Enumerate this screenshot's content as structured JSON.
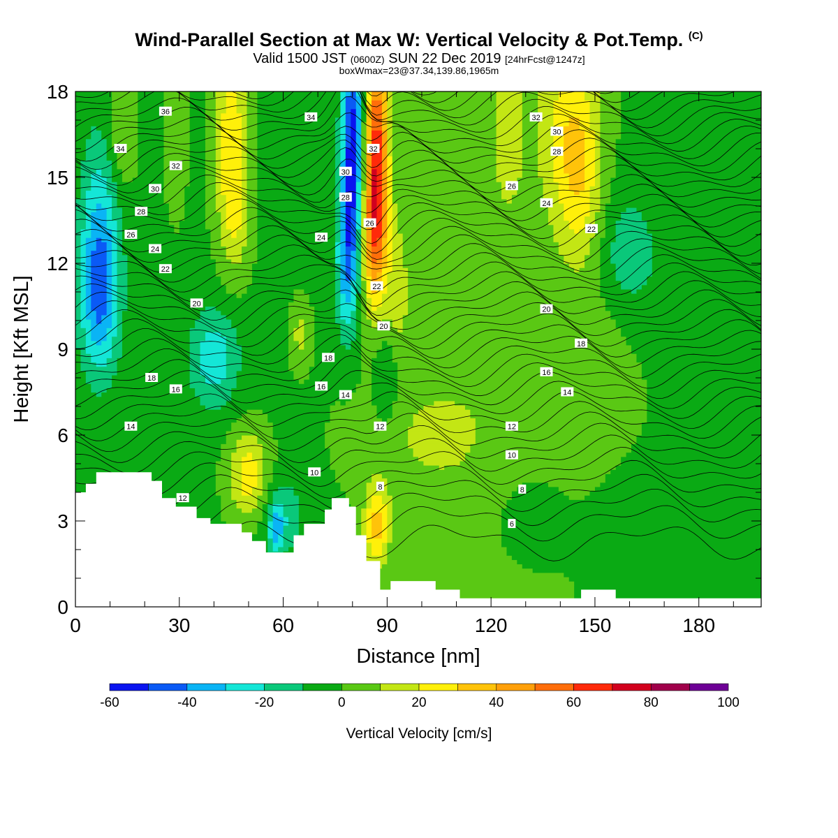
{
  "title": {
    "main": "Wind-Parallel Section at Max W: Vertical Velocity & Pot.Temp.",
    "copyright": "(C)",
    "valid_prefix": "Valid 1500 JST",
    "valid_utc": "(0600Z)",
    "valid_date": "SUN 22 Dec 2019",
    "forecast": "[24hrFcst@1247z]",
    "boxwmax": "boxWmax=23@37.34,139.86,1965m"
  },
  "chart_data": {
    "type": "heatmap",
    "xlabel": "Distance [nm]",
    "ylabel": "Height [Kft MSL]",
    "xlim": [
      0,
      198
    ],
    "ylim": [
      0,
      18
    ],
    "xticks": [
      0,
      30,
      60,
      90,
      120,
      150,
      180
    ],
    "yticks": [
      0,
      3,
      6,
      9,
      12,
      15,
      18
    ],
    "colorbar": {
      "title": "Vertical Velocity [cm/s]",
      "levels": [
        -60,
        -50,
        -40,
        -30,
        -20,
        -10,
        0,
        10,
        20,
        30,
        40,
        50,
        60,
        70,
        80,
        90,
        100
      ],
      "labels": [
        -60,
        -40,
        -20,
        0,
        20,
        40,
        60,
        80,
        100
      ],
      "colors": [
        "#0a14f0",
        "#0a5af5",
        "#0ab4f5",
        "#14e6d7",
        "#0ac87a",
        "#0aaa14",
        "#5ac814",
        "#c3e614",
        "#fff00a",
        "#ffc30a",
        "#ffa00a",
        "#ff6e0a",
        "#ff2a0a",
        "#d2001e",
        "#a0004b",
        "#6e0096"
      ]
    },
    "terrain_kft": [
      [
        0,
        4.0
      ],
      [
        3,
        4.0
      ],
      [
        3,
        4.3
      ],
      [
        6,
        4.3
      ],
      [
        6,
        4.7
      ],
      [
        22,
        4.7
      ],
      [
        22,
        4.4
      ],
      [
        25,
        4.4
      ],
      [
        25,
        3.8
      ],
      [
        29,
        3.8
      ],
      [
        29,
        3.5
      ],
      [
        35,
        3.5
      ],
      [
        35,
        3.1
      ],
      [
        39,
        3.1
      ],
      [
        39,
        2.9
      ],
      [
        48,
        2.9
      ],
      [
        48,
        2.6
      ],
      [
        51,
        2.6
      ],
      [
        51,
        2.3
      ],
      [
        55,
        2.3
      ],
      [
        55,
        1.9
      ],
      [
        63,
        1.9
      ],
      [
        63,
        2.5
      ],
      [
        66,
        2.5
      ],
      [
        66,
        2.9
      ],
      [
        72,
        2.9
      ],
      [
        72,
        3.4
      ],
      [
        74,
        3.4
      ],
      [
        74,
        3.8
      ],
      [
        79,
        3.8
      ],
      [
        79,
        3.5
      ],
      [
        81,
        3.5
      ],
      [
        81,
        2.5
      ],
      [
        84,
        2.5
      ],
      [
        84,
        1.6
      ],
      [
        88,
        1.6
      ],
      [
        88,
        0.6
      ],
      [
        91,
        0.6
      ],
      [
        91,
        0.9
      ],
      [
        104,
        0.9
      ],
      [
        104,
        0.6
      ],
      [
        111,
        0.6
      ],
      [
        111,
        0.3
      ],
      [
        146,
        0.3
      ],
      [
        146,
        0.6
      ],
      [
        156,
        0.6
      ],
      [
        156,
        0.3
      ],
      [
        198,
        0.3
      ]
    ],
    "w_features": [
      {
        "x": 80,
        "y": 16,
        "sx": 2.2,
        "sy": 3.0,
        "w": -55
      },
      {
        "x": 78,
        "y": 12,
        "sx": 2.0,
        "sy": 1.8,
        "w": -28
      },
      {
        "x": 87,
        "y": 16,
        "sx": 2.4,
        "sy": 3.0,
        "w": 62
      },
      {
        "x": 86,
        "y": 13,
        "sx": 2.5,
        "sy": 1.8,
        "w": 32
      },
      {
        "x": 45,
        "y": 16.5,
        "sx": 3.5,
        "sy": 2.2,
        "w": 28
      },
      {
        "x": 46,
        "y": 13.5,
        "sx": 3.0,
        "sy": 1.5,
        "w": 16
      },
      {
        "x": 7,
        "y": 13,
        "sx": 4.0,
        "sy": 2.5,
        "w": -28
      },
      {
        "x": 7,
        "y": 10.5,
        "sx": 4.0,
        "sy": 1.8,
        "w": -26
      },
      {
        "x": 13,
        "y": 16.5,
        "sx": 3.0,
        "sy": 1.5,
        "w": 12
      },
      {
        "x": 29,
        "y": 16.5,
        "sx": 2.0,
        "sy": 1.8,
        "w": 12
      },
      {
        "x": 40,
        "y": 8.7,
        "sx": 5.0,
        "sy": 1.2,
        "w": -25
      },
      {
        "x": 50,
        "y": 4.6,
        "sx": 4.0,
        "sy": 1.1,
        "w": 28
      },
      {
        "x": 60,
        "y": 3.2,
        "sx": 4.5,
        "sy": 1.0,
        "w": -15
      },
      {
        "x": 58,
        "y": 2.7,
        "sx": 1.5,
        "sy": 0.6,
        "w": -25
      },
      {
        "x": 87,
        "y": 2.8,
        "sx": 2.5,
        "sy": 1.0,
        "w": 35
      },
      {
        "x": 90,
        "y": 8.0,
        "sx": 3.0,
        "sy": 1.3,
        "w": -15
      },
      {
        "x": 65,
        "y": 9.5,
        "sx": 2.0,
        "sy": 0.8,
        "w": 15
      },
      {
        "x": 93,
        "y": 11,
        "sx": 2.5,
        "sy": 2.0,
        "w": 16
      },
      {
        "x": 143,
        "y": 16.5,
        "sx": 6.0,
        "sy": 2.5,
        "w": 26
      },
      {
        "x": 146,
        "y": 14.5,
        "sx": 4.0,
        "sy": 2.0,
        "w": 14
      },
      {
        "x": 125,
        "y": 16.5,
        "sx": 3.0,
        "sy": 1.8,
        "w": 14
      },
      {
        "x": 159,
        "y": 12.5,
        "sx": 4.0,
        "sy": 1.2,
        "w": -12
      },
      {
        "x": 148,
        "y": 8.5,
        "sx": 15.0,
        "sy": 2.0,
        "w": 8
      },
      {
        "x": 100,
        "y": 6.0,
        "sx": 15.0,
        "sy": 1.8,
        "w": 10
      },
      {
        "x": 172,
        "y": 11.5,
        "sx": 15.0,
        "sy": 2.5,
        "w": -8
      },
      {
        "x": 130,
        "y": 3.0,
        "sx": 7.0,
        "sy": 1.2,
        "w": -8
      },
      {
        "x": 178,
        "y": 1.5,
        "sx": 15.0,
        "sy": 1.0,
        "w": -5
      }
    ],
    "theta_levels": [
      6,
      8,
      10,
      12,
      14,
      16,
      18,
      20,
      22,
      24,
      26,
      28,
      30,
      32,
      34,
      36
    ],
    "theta_labels": [
      {
        "text": "36",
        "x": 26,
        "y": 17.3
      },
      {
        "text": "34",
        "x": 13,
        "y": 16.0
      },
      {
        "text": "32",
        "x": 29,
        "y": 15.4
      },
      {
        "text": "30",
        "x": 23,
        "y": 14.6
      },
      {
        "text": "28",
        "x": 19,
        "y": 13.8
      },
      {
        "text": "26",
        "x": 16,
        "y": 13.0
      },
      {
        "text": "24",
        "x": 23,
        "y": 12.5
      },
      {
        "text": "22",
        "x": 26,
        "y": 11.8
      },
      {
        "text": "20",
        "x": 35,
        "y": 10.6
      },
      {
        "text": "18",
        "x": 22,
        "y": 8.0
      },
      {
        "text": "16",
        "x": 29,
        "y": 7.6
      },
      {
        "text": "14",
        "x": 16,
        "y": 6.3
      },
      {
        "text": "12",
        "x": 31,
        "y": 3.8
      },
      {
        "text": "34",
        "x": 68,
        "y": 17.1
      },
      {
        "text": "30",
        "x": 78,
        "y": 15.2
      },
      {
        "text": "28",
        "x": 78,
        "y": 14.3
      },
      {
        "text": "24",
        "x": 71,
        "y": 12.9
      },
      {
        "text": "32",
        "x": 86,
        "y": 16.0
      },
      {
        "text": "26",
        "x": 85,
        "y": 13.4
      },
      {
        "text": "22",
        "x": 87,
        "y": 11.2
      },
      {
        "text": "20",
        "x": 89,
        "y": 9.8
      },
      {
        "text": "18",
        "x": 73,
        "y": 8.7
      },
      {
        "text": "16",
        "x": 71,
        "y": 7.7
      },
      {
        "text": "14",
        "x": 78,
        "y": 7.4
      },
      {
        "text": "12",
        "x": 88,
        "y": 6.3
      },
      {
        "text": "10",
        "x": 69,
        "y": 4.7
      },
      {
        "text": "8",
        "x": 88,
        "y": 4.2
      },
      {
        "text": "32",
        "x": 133,
        "y": 17.1
      },
      {
        "text": "30",
        "x": 139,
        "y": 16.6
      },
      {
        "text": "28",
        "x": 139,
        "y": 15.9
      },
      {
        "text": "26",
        "x": 126,
        "y": 14.7
      },
      {
        "text": "24",
        "x": 136,
        "y": 14.1
      },
      {
        "text": "22",
        "x": 149,
        "y": 13.2
      },
      {
        "text": "20",
        "x": 136,
        "y": 10.4
      },
      {
        "text": "18",
        "x": 146,
        "y": 9.2
      },
      {
        "text": "16",
        "x": 136,
        "y": 8.2
      },
      {
        "text": "14",
        "x": 142,
        "y": 7.5
      },
      {
        "text": "12",
        "x": 126,
        "y": 6.3
      },
      {
        "text": "10",
        "x": 126,
        "y": 5.3
      },
      {
        "text": "8",
        "x": 129,
        "y": 4.1
      },
      {
        "text": "6",
        "x": 126,
        "y": 2.9
      }
    ]
  }
}
